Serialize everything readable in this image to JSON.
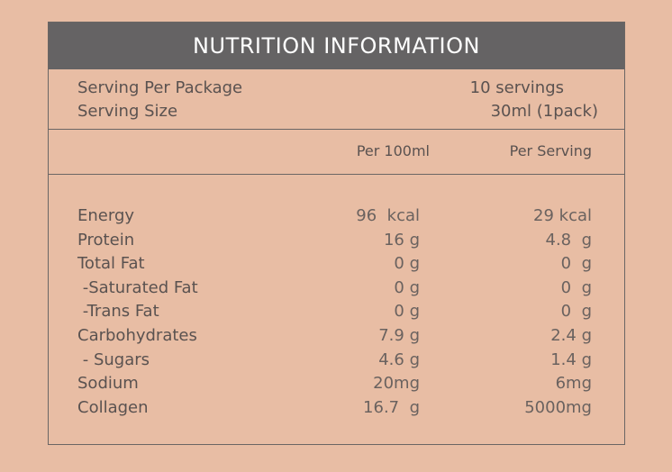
{
  "title": "NUTRITION INFORMATION",
  "serving": [
    {
      "label": "Serving Per Package",
      "value": "10 servings"
    },
    {
      "label": "Serving Size",
      "value": "30ml (1pack)"
    }
  ],
  "columns": {
    "per100": "Per 100ml",
    "perServing": "Per Serving"
  },
  "rows": [
    {
      "name": "Energy",
      "per100": "96  kcal",
      "perServing": "29 kcal"
    },
    {
      "name": "Protein",
      "per100": "16 g",
      "perServing": "4.8  g"
    },
    {
      "name": "Total Fat",
      "per100": "0 g",
      "perServing": "0  g"
    },
    {
      "name": " -Saturated Fat",
      "per100": "0 g",
      "perServing": "0  g"
    },
    {
      "name": " -Trans Fat",
      "per100": "0 g",
      "perServing": "0  g"
    },
    {
      "name": "Carbohydrates",
      "per100": "7.9 g",
      "perServing": "2.4 g"
    },
    {
      "name": " - Sugars",
      "per100": "4.6 g",
      "perServing": "1.4 g"
    },
    {
      "name": "Sodium",
      "per100": "20mg",
      "perServing": "6mg"
    },
    {
      "name": "Collagen",
      "per100": "16.7  g",
      "perServing": "5000mg"
    }
  ]
}
